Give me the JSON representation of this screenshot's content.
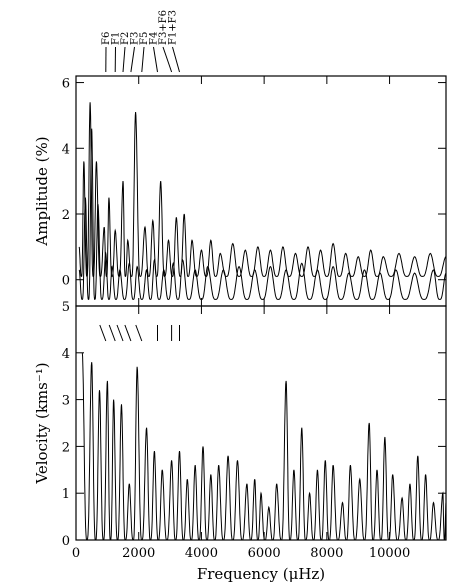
{
  "chart_data": [
    {
      "type": "line",
      "panel": "top",
      "ylabel": "Amplitude (%)",
      "xlim": [
        0,
        11800
      ],
      "ylim": [
        -0.8,
        6.2
      ],
      "yticks": [
        0,
        2,
        4,
        6
      ],
      "grid": false,
      "frequency_markers": [
        {
          "label": "F6",
          "x": 950
        },
        {
          "label": "F1",
          "x": 1250
        },
        {
          "label": "F2",
          "x": 1500
        },
        {
          "label": "F3",
          "x": 1750
        },
        {
          "label": "F5",
          "x": 2100
        },
        {
          "label": "F4",
          "x": 2600
        },
        {
          "label": "F3+F6",
          "x": 3050
        },
        {
          "label": "F1+F3",
          "x": 3300
        }
      ],
      "series": [
        {
          "peaks": [
            [
              100,
              1.0
            ],
            [
              250,
              3.6
            ],
            [
              450,
              5.4
            ],
            [
              650,
              3.6
            ],
            [
              900,
              1.6
            ],
            [
              1050,
              2.5
            ],
            [
              1250,
              1.5
            ],
            [
              1500,
              3.0
            ],
            [
              1650,
              1.2
            ],
            [
              1900,
              5.1
            ],
            [
              2200,
              1.6
            ],
            [
              2450,
              1.8
            ],
            [
              2700,
              3.0
            ],
            [
              2950,
              1.2
            ],
            [
              3200,
              1.9
            ],
            [
              3450,
              2.0
            ],
            [
              3700,
              1.2
            ],
            [
              4000,
              0.9
            ],
            [
              4300,
              1.2
            ],
            [
              4600,
              0.8
            ],
            [
              5000,
              1.1
            ],
            [
              5400,
              0.9
            ],
            [
              5800,
              1.0
            ],
            [
              6200,
              0.9
            ],
            [
              6600,
              1.0
            ],
            [
              7000,
              0.8
            ],
            [
              7400,
              1.0
            ],
            [
              7800,
              0.9
            ],
            [
              8200,
              1.1
            ],
            [
              8600,
              0.8
            ],
            [
              9000,
              0.7
            ],
            [
              9400,
              0.9
            ],
            [
              9800,
              0.7
            ],
            [
              10300,
              0.8
            ],
            [
              10800,
              0.7
            ],
            [
              11300,
              0.8
            ],
            [
              11800,
              0.7
            ]
          ],
          "floor": 0.1
        },
        {
          "peaks": [
            [
              100,
              0.3
            ],
            [
              300,
              2.5
            ],
            [
              500,
              4.6
            ],
            [
              700,
              2.3
            ],
            [
              950,
              0.8
            ],
            [
              1150,
              0.4
            ],
            [
              1400,
              0.3
            ],
            [
              1700,
              0.5
            ],
            [
              1950,
              0.4
            ],
            [
              2250,
              0.3
            ],
            [
              2500,
              0.6
            ],
            [
              2800,
              0.3
            ],
            [
              3100,
              0.5
            ],
            [
              3400,
              0.6
            ],
            [
              3800,
              0.3
            ],
            [
              4200,
              0.4
            ],
            [
              4700,
              0.3
            ],
            [
              5200,
              0.4
            ],
            [
              5700,
              0.3
            ],
            [
              6200,
              0.4
            ],
            [
              6700,
              0.3
            ],
            [
              7200,
              0.5
            ],
            [
              7700,
              0.3
            ],
            [
              8200,
              0.4
            ],
            [
              8700,
              0.2
            ],
            [
              9200,
              0.3
            ],
            [
              9700,
              0.2
            ],
            [
              10200,
              0.3
            ],
            [
              10800,
              0.2
            ],
            [
              11400,
              0.3
            ],
            [
              11800,
              0.2
            ]
          ],
          "floor": -0.6
        }
      ]
    },
    {
      "type": "line",
      "panel": "bottom",
      "xlabel": "Frequency (μHz)",
      "ylabel": "Velocity (kms⁻¹)",
      "xlim": [
        0,
        11800
      ],
      "ylim": [
        0,
        5
      ],
      "xticks": [
        0,
        2000,
        4000,
        6000,
        8000,
        10000
      ],
      "yticks": [
        0,
        1,
        2,
        3,
        4,
        5
      ],
      "grid": false,
      "marker_x": [
        950,
        1250,
        1500,
        1750,
        2100,
        2600,
        3050,
        3300
      ],
      "series": [
        {
          "peaks": [
            [
              200,
              4.0
            ],
            [
              500,
              3.8
            ],
            [
              750,
              3.2
            ],
            [
              1000,
              3.4
            ],
            [
              1200,
              3.0
            ],
            [
              1450,
              2.9
            ],
            [
              1700,
              1.2
            ],
            [
              1950,
              3.7
            ],
            [
              2250,
              2.4
            ],
            [
              2500,
              1.9
            ],
            [
              2750,
              1.5
            ],
            [
              3050,
              1.7
            ],
            [
              3300,
              1.9
            ],
            [
              3550,
              1.3
            ],
            [
              3800,
              1.6
            ],
            [
              4050,
              2.0
            ],
            [
              4300,
              1.4
            ],
            [
              4550,
              1.6
            ],
            [
              4850,
              1.8
            ],
            [
              5150,
              1.7
            ],
            [
              5450,
              1.2
            ],
            [
              5700,
              1.3
            ],
            [
              5900,
              1.0
            ],
            [
              6150,
              0.7
            ],
            [
              6400,
              1.2
            ],
            [
              6700,
              3.4
            ],
            [
              6950,
              1.5
            ],
            [
              7200,
              2.4
            ],
            [
              7450,
              1.0
            ],
            [
              7700,
              1.5
            ],
            [
              7950,
              1.7
            ],
            [
              8200,
              1.6
            ],
            [
              8500,
              0.8
            ],
            [
              8750,
              1.6
            ],
            [
              9050,
              1.3
            ],
            [
              9350,
              2.5
            ],
            [
              9600,
              1.5
            ],
            [
              9850,
              2.2
            ],
            [
              10100,
              1.4
            ],
            [
              10400,
              0.9
            ],
            [
              10650,
              1.2
            ],
            [
              10900,
              1.8
            ],
            [
              11150,
              1.4
            ],
            [
              11400,
              0.8
            ],
            [
              11700,
              1.0
            ],
            [
              11800,
              0.8
            ]
          ],
          "floor": 0.0
        }
      ]
    }
  ]
}
